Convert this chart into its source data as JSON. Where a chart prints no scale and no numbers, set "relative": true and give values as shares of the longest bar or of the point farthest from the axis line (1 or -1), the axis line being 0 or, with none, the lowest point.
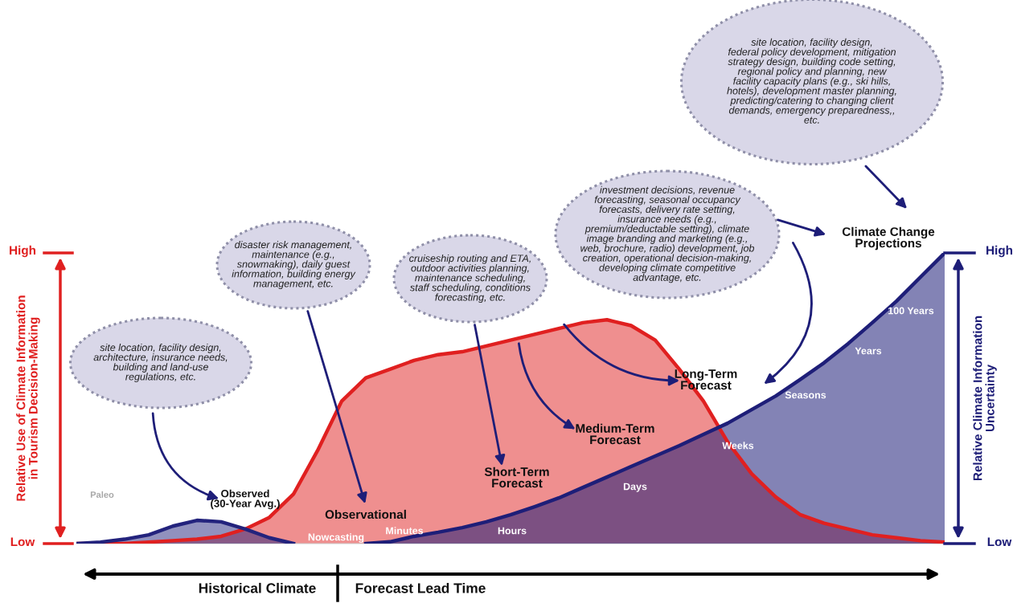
{
  "chart_data": {
    "type": "area",
    "relative": true,
    "legend": false,
    "ylabel": "Relative Use of Climate Information\nin Tourism Decision-Making",
    "y2label": "Relative Climate Information\nUncertainty",
    "categories": [
      null,
      null,
      null,
      null,
      null,
      null,
      null,
      null,
      null,
      null,
      null,
      null,
      null,
      null,
      null,
      null,
      null,
      null,
      null,
      null,
      null,
      null,
      null,
      null,
      null,
      null,
      null,
      null,
      null,
      null,
      null,
      null,
      null,
      null,
      null,
      null,
      null
    ],
    "series": [
      {
        "type": "area",
        "color": "#e02020",
        "values": [
          0,
          0,
          0,
          0.005,
          0.01,
          0.015,
          0.025,
          0.05,
          0.09,
          0.17,
          0.32,
          0.49,
          0.57,
          0.6,
          0.63,
          0.65,
          0.66,
          0.68,
          0.7,
          0.72,
          0.74,
          0.76,
          0.77,
          0.75,
          0.7,
          0.6,
          0.49,
          0.35,
          0.24,
          0.16,
          0.1,
          0.07,
          0.05,
          0.03,
          0.02,
          0.01,
          0.005
        ]
      },
      {
        "type": "area",
        "color": "#23237d",
        "values": [
          0,
          0.005,
          0.015,
          0.03,
          0.06,
          0.08,
          0.075,
          0.05,
          0.02,
          0,
          null,
          null,
          null,
          null,
          null,
          null,
          null,
          null,
          null,
          null,
          null,
          null,
          null,
          null,
          null,
          null,
          null,
          null,
          null,
          null,
          null,
          null,
          null,
          null,
          null,
          null,
          null
        ]
      },
      {
        "type": "area",
        "color": "#1e1e78",
        "values": [
          null,
          null,
          null,
          null,
          null,
          null,
          null,
          null,
          null,
          null,
          null,
          null,
          0,
          0.006,
          0.025,
          0.039,
          0.055,
          0.075,
          0.099,
          0.127,
          0.157,
          0.193,
          0.229,
          0.265,
          0.301,
          0.337,
          0.376,
          0.414,
          0.461,
          0.508,
          0.564,
          0.622,
          0.688,
          0.76,
          0.834,
          0.917,
          1
        ]
      }
    ],
    "annotations": [
      "site location, facility design,\narchitecture, insurance needs,\nbuilding and land-use\nregulations, etc.",
      "disaster risk management,\nmaintenance (e.g.,\nsnowmaking), daily guest\ninformation, building energy\nmanagement, etc.",
      "cruiseship routing and ETA,\noutdoor activities planning,\nmaintenance scheduling,\nstaff scheduling, conditions\nforecasting, etc.",
      "investment decisions, revenue\nforecasting, seasonal occupancy\nforecasts, delivery rate setting,\ninsurance needs (e.g.,\npremium/deductable setting), climate\nimage branding and marketing (e.g.,\nweb, brochure, radio) development, job\ncreation, operational decision-making,\ndeveloping climate competitive\nadvantage, etc.",
      "site location, facility design,\nfederal policy development, mitigation\nstrategy design, building code setting,\nregional policy and planning, new\nfacility capacity plans (e.g., ski hills,\nhotels), development master planning,\npredicting/catering to changing client\ndemands, emergency preparedness,,\netc.",
      "Observed\n(30-Year Avg.)",
      "Paleo",
      "Observational",
      "Nowcasting",
      "Minutes",
      "Hours",
      "Days",
      "Weeks",
      "Seasons",
      "Years",
      "100 Years",
      "Short-Term\nForecast",
      "Medium-Term\nForecast",
      "Long-Term\nForecast",
      "Climate Change\nProjections",
      "High",
      "Low",
      "High",
      "Low",
      "Historical Climate",
      "Forecast Lead Time"
    ]
  }
}
